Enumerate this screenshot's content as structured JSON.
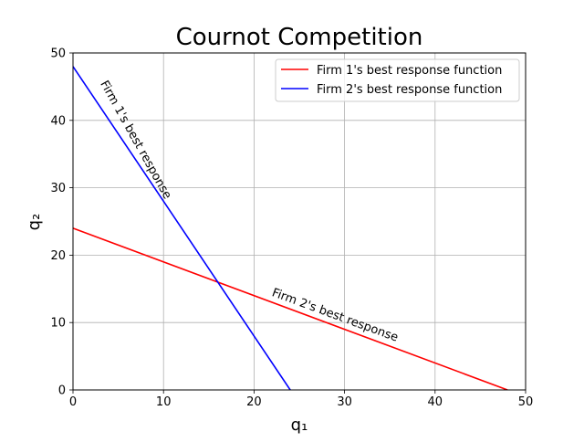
{
  "chart_data": {
    "type": "line",
    "title": "Cournot Competition",
    "xlabel": "q₁",
    "ylabel": "q₂",
    "xlim": [
      0,
      50
    ],
    "ylim": [
      0,
      50
    ],
    "xticks": [
      0,
      10,
      20,
      30,
      40,
      50
    ],
    "yticks": [
      0,
      10,
      20,
      30,
      40,
      50
    ],
    "xtick_labels": [
      "0",
      "10",
      "20",
      "30",
      "40",
      "50"
    ],
    "ytick_labels": [
      "0",
      "10",
      "20",
      "30",
      "40",
      "50"
    ],
    "grid": true,
    "legend_position": "top-right",
    "series": [
      {
        "name": "Firm 1's best response function",
        "color": "#ff0000",
        "points": [
          [
            0,
            24
          ],
          [
            48,
            0
          ]
        ]
      },
      {
        "name": "Firm 2's best response function",
        "color": "#0000ff",
        "points": [
          [
            0,
            48
          ],
          [
            24,
            0
          ]
        ]
      }
    ],
    "annotations": [
      {
        "text": "Firm 1's best response",
        "x": 3,
        "y": 45.5,
        "rotation": 60.8
      },
      {
        "text": "Firm 2's best response",
        "x": 21.9,
        "y": 14,
        "rotation": 20.1
      }
    ]
  }
}
